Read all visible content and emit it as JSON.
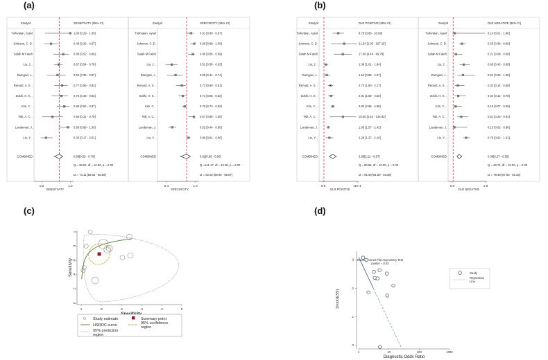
{
  "panel_labels": {
    "a": "(a)",
    "b": "(b)",
    "c": "(c)",
    "d": "(d)"
  },
  "forest": {
    "studyid_header": "StudyId",
    "combined_label": "COMBINED",
    "studies": [
      "Turkvatan, Aysel",
      "Johnson, C. D.",
      "Salah M Fateh",
      "Liu, J. .",
      "Damgaci, L.",
      "Renard, A. S. .",
      "Sokhi, H. K. .",
      "Kim, C. .",
      "Tsili, A. C. .",
      "Landsman, J.",
      "Liu, Y. ."
    ]
  },
  "chart_data": [
    {
      "type": "forest",
      "panel": "a-left",
      "header": "SENSITIVITY (95% CI)",
      "xlabel": "SENSITIVITY",
      "ticks": [
        "0.2",
        "1.0"
      ],
      "tick_values": [
        0.2,
        1.0
      ],
      "xlim": [
        0.1,
        1.05
      ],
      "refline": 0.69,
      "labels": [
        "1.00 [0.29 - 1.00]",
        "0.46 [0.26 - 0.67]",
        "0.80 [0.52 - 0.96]",
        "0.67 [0.54 - 0.78]",
        "0.64 [0.35 - 0.87]",
        "0.77 [0.55 - 0.92]",
        "0.75 [0.48 - 0.93]",
        "0.83 [0.62 - 0.97]",
        "0.50 [0.21 - 0.79]",
        "0.93 [0.68 - 1.00]",
        "0.32 [0.17 - 0.51]"
      ],
      "est": [
        1.0,
        0.46,
        0.8,
        0.67,
        0.64,
        0.77,
        0.75,
        0.83,
        0.5,
        0.93,
        0.32
      ],
      "lo": [
        0.29,
        0.26,
        0.52,
        0.54,
        0.35,
        0.55,
        0.48,
        0.62,
        0.21,
        0.68,
        0.17
      ],
      "hi": [
        1.0,
        0.67,
        0.96,
        0.78,
        0.87,
        0.92,
        0.93,
        0.97,
        0.79,
        1.0,
        0.51
      ],
      "combined": {
        "est": 0.69,
        "lo": 0.55,
        "hi": 0.79,
        "label": "0.69[0.55 - 0.79]"
      },
      "q_text": "Q = 38.62, df = 10.00, p = 0.00",
      "i2_text": "I2 = 74.11 [58.63 - 89.59]"
    },
    {
      "type": "forest",
      "panel": "a-right",
      "header": "SPECIFICITY (95% CI)",
      "xlabel": "SPECIFICITY",
      "ticks": [
        "0.4",
        "1.0"
      ],
      "tick_values": [
        0.4,
        1.0
      ],
      "xlim": [
        0.3,
        1.05
      ],
      "refline": 0.82,
      "labels": [
        "0.91 [0.80 - 0.97]",
        "0.98 [0.89 - 1.00]",
        "0.95 [0.85 - 0.99]",
        "0.51 [0.38 - 0.63]",
        "0.59 [0.41 - 0.74]",
        "0.72 [0.60 - 0.81]",
        "0.74 [0.65 - 0.82]",
        "0.78 [0.73 - 0.82]",
        "0.97 [0.85 - 1.00]",
        "0.52 [0.44 - 0.60]",
        "0.86 [0.81 - 0.90]"
      ],
      "est": [
        0.91,
        0.98,
        0.95,
        0.51,
        0.59,
        0.72,
        0.74,
        0.78,
        0.97,
        0.52,
        0.86
      ],
      "lo": [
        0.8,
        0.89,
        0.85,
        0.38,
        0.41,
        0.6,
        0.65,
        0.73,
        0.85,
        0.44,
        0.81
      ],
      "hi": [
        0.97,
        1.0,
        0.99,
        0.63,
        0.74,
        0.81,
        0.82,
        0.82,
        1.0,
        0.6,
        0.9
      ],
      "combined": {
        "est": 0.82,
        "lo": 0.69,
        "hi": 0.9,
        "label": "0.82[0.69 - 0.90]"
      },
      "q_text": "Q =141.17, df = 10.00, p = 0.00",
      "i2_text": "I2 = 92.92 [89.96 - 95.87]"
    },
    {
      "type": "forest",
      "panel": "b-left",
      "header": "DLR POSITIVE (95% CI)",
      "xlabel": "DLR POSITIVE",
      "ticks": [
        "0.9",
        "157.1"
      ],
      "tick_values": [
        0.9,
        157.1
      ],
      "xlim": [
        0.9,
        157.1
      ],
      "refline": 1.0,
      "labels": [
        "8.75 [3.65 - 20.99]",
        "21.54 [2.95 - 157.15]",
        "17.60 [4.44 - 69.78]",
        "1.36 [1.01 - 1.84]",
        "1.54 [0.89 - 2.67]",
        "2.74 [1.80 - 4.17]",
        "2.91 [1.88 - 4.50]",
        "3.83 [2.95 - 4.98]",
        "18.00 [2.40 - 134.83]",
        "1.95 [1.57 - 2.42]",
        "2.28 [1.27 - 4.10]"
      ],
      "est": [
        8.75,
        21.54,
        17.6,
        1.36,
        1.54,
        2.74,
        2.91,
        3.83,
        18.0,
        1.95,
        2.28
      ],
      "lo": [
        3.65,
        2.95,
        4.44,
        1.01,
        0.89,
        1.8,
        1.88,
        2.95,
        2.4,
        1.57,
        1.27
      ],
      "hi": [
        20.99,
        157.15,
        69.78,
        1.84,
        2.67,
        4.17,
        4.5,
        4.98,
        134.83,
        2.42,
        4.1
      ],
      "combined": {
        "est": 3.85,
        "lo": 2.22,
        "hi": 6.67,
        "label": "3.85[2.22 - 6.67]"
      },
      "q_text": "Q = 80.58, df = 10.00, p = 0.00",
      "i2_text": "I2 = 81.50 [81.50 - 93.68]"
    },
    {
      "type": "forest",
      "panel": "b-right",
      "header": "DLR NEGATIVE (95% CI)",
      "xlabel": "DLR NEGATIVE",
      "ticks": [
        "0.0",
        "1.9"
      ],
      "tick_values": [
        0.0,
        1.9
      ],
      "xlim": [
        0.0,
        1.9
      ],
      "refline": 0.05,
      "labels": [
        "0.14 [0.01 - 1.86]",
        "0.55 [0.38 - 0.80]",
        "0.21 [0.08 - 0.58]",
        "0.65 [0.42 - 0.99]",
        "0.61 [0.29 - 1.30]",
        "0.32 [0.14 - 0.69]",
        "0.34 [0.14 - 0.79]",
        "0.19 [0.07 - 0.55]",
        "0.51 [0.29 - 0.91]",
        "0.13 [0.02 - 0.86]",
        "0.79 [0.62 - 1.01]"
      ],
      "est": [
        0.14,
        0.55,
        0.21,
        0.65,
        0.61,
        0.32,
        0.34,
        0.19,
        0.51,
        0.13,
        0.79
      ],
      "lo": [
        0.01,
        0.38,
        0.08,
        0.42,
        0.29,
        0.14,
        0.14,
        0.07,
        0.29,
        0.02,
        0.62
      ],
      "hi": [
        1.86,
        0.8,
        0.58,
        0.99,
        1.3,
        0.69,
        0.79,
        0.55,
        0.91,
        0.86,
        1.01
      ],
      "combined": {
        "est": 0.38,
        "lo": 0.27,
        "hi": 0.55,
        "label": "0.38[0.27 - 0.55]"
      },
      "q_text": "Q = 48.74, df = 10.00, p = 0.00",
      "i2_text": "I2 = 79.48 [67.93 - 91.03]"
    },
    {
      "type": "scatter",
      "panel": "c",
      "xlabel": "Specificity",
      "ylabel": "Sensitivity",
      "xticks": [
        "1",
        ".8",
        ".6",
        ".4",
        ".2",
        "0"
      ],
      "xtick_values": [
        1,
        0.8,
        0.6,
        0.4,
        0.2,
        0
      ],
      "yticks": [
        "0",
        ".2",
        ".4",
        ".6",
        ".8",
        "1"
      ],
      "ytick_values": [
        0,
        0.2,
        0.4,
        0.6,
        0.8,
        1
      ],
      "xlim": [
        1,
        0
      ],
      "ylim": [
        0,
        1
      ],
      "studies_spec_sens": [
        [
          0.91,
          1.0
        ],
        [
          0.98,
          0.46
        ],
        [
          0.95,
          0.8
        ],
        [
          0.51,
          0.67
        ],
        [
          0.59,
          0.64
        ],
        [
          0.72,
          0.77
        ],
        [
          0.74,
          0.75
        ],
        [
          0.78,
          0.83
        ],
        [
          0.97,
          0.5
        ],
        [
          0.52,
          0.93
        ],
        [
          0.86,
          0.32
        ]
      ],
      "study_size": [
        3,
        3,
        3,
        4,
        3.5,
        4.5,
        5,
        7,
        3,
        4,
        5
      ],
      "summary": [
        0.82,
        0.69
      ],
      "legend": {
        "study_estimate": "Study estimate",
        "summary_point": "Summary point",
        "hsroc": "HSROC curve",
        "ci": "95% confidence region",
        "pred": "95% prediction region"
      },
      "colors": {
        "hsroc": "#4f7f2e",
        "ci": "#e88d2a",
        "pred": "#8a8a8a",
        "summary": "#8b1e2d"
      }
    },
    {
      "type": "scatter",
      "panel": "d",
      "title": "Deeks' Funnel Plot Asymmetry Test",
      "subtitle": "pvalue = 0.03",
      "xlabel": "Diagnostic Odds Ratio",
      "ylabel": "1/root(ESS)",
      "xticks": [
        "1",
        "10",
        "100",
        "1000"
      ],
      "xtick_values": [
        1,
        10,
        100,
        1000
      ],
      "yticks": [
        "0",
        ".1",
        ".2",
        ".3"
      ],
      "ytick_values": [
        0,
        0.1,
        0.2,
        0.3
      ],
      "ylim": [
        -0.005,
        0.33
      ],
      "points": [
        [
          1.4,
          0.308
        ],
        [
          1.8,
          0.3
        ],
        [
          3.2,
          0.258
        ],
        [
          3.4,
          0.237
        ],
        [
          2.1,
          0.186
        ],
        [
          4.9,
          0.264
        ],
        [
          4.2,
          0.235
        ],
        [
          8.6,
          0.252
        ],
        [
          14,
          0.21
        ],
        [
          8.8,
          0.175
        ],
        [
          5.1,
          -0.005
        ]
      ],
      "regression_line": [
        [
          1,
          0.31
        ],
        [
          25,
          -0.005
        ]
      ],
      "legend": {
        "study": "Study",
        "regression": "Regression Line"
      },
      "colors": {
        "line": "#1f3a8c",
        "regression": "#6c8fb0"
      }
    }
  ]
}
